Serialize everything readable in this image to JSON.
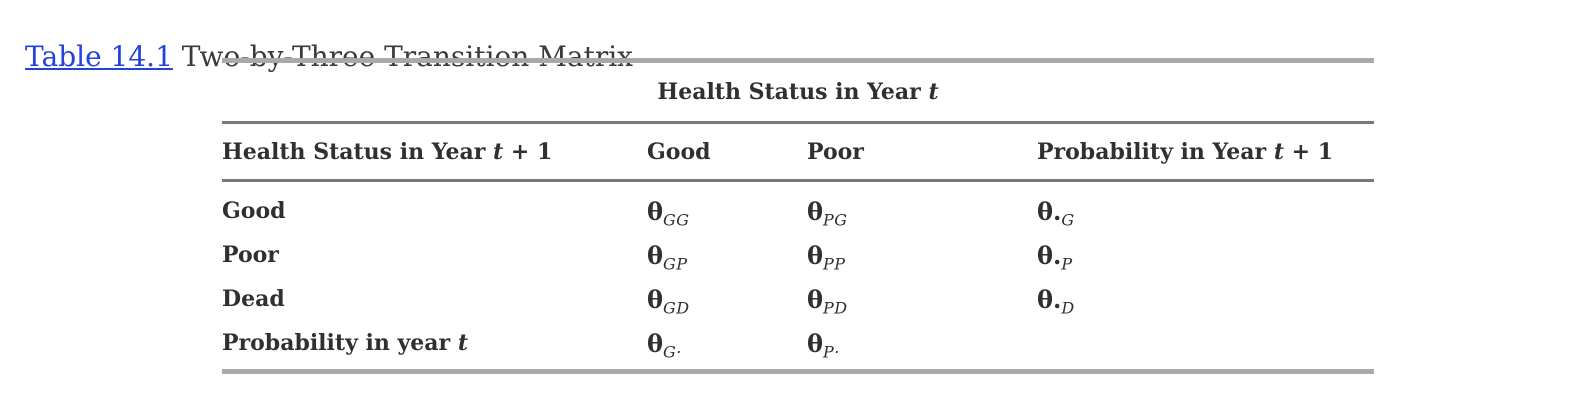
{
  "title": {
    "link_text": "Table 14.1",
    "caption_text": "Two-by-Three Transition Matrix",
    "link_color": "#2442d9",
    "text_color": "#3a3a3a"
  },
  "table": {
    "span_header": [
      "Health Status in Year ",
      {
        "i": "t"
      }
    ],
    "columns": [
      [
        "Health Status in Year ",
        {
          "i": "t"
        },
        " + 1"
      ],
      [
        "Good"
      ],
      [
        "Poor"
      ],
      [
        "Probability in Year ",
        {
          "i": "t"
        },
        " + 1"
      ]
    ],
    "rows": [
      {
        "label": [
          "Good"
        ],
        "cells": [
          [
            {
              "th": "θ"
            },
            {
              "sub": "GG"
            }
          ],
          [
            {
              "th": "θ"
            },
            {
              "sub": "PG"
            }
          ],
          [
            {
              "th": "θ."
            },
            {
              "sub": "G"
            }
          ]
        ]
      },
      {
        "label": [
          "Poor"
        ],
        "cells": [
          [
            {
              "th": "θ"
            },
            {
              "sub": "GP"
            }
          ],
          [
            {
              "th": "θ"
            },
            {
              "sub": "PP"
            }
          ],
          [
            {
              "th": "θ."
            },
            {
              "sub": "P"
            }
          ]
        ]
      },
      {
        "label": [
          "Dead"
        ],
        "cells": [
          [
            {
              "th": "θ"
            },
            {
              "sub": "GD"
            }
          ],
          [
            {
              "th": "θ"
            },
            {
              "sub": "PD"
            }
          ],
          [
            {
              "th": "θ."
            },
            {
              "sub": "D"
            }
          ]
        ]
      },
      {
        "label": [
          "Probability in year ",
          {
            "i": "t"
          }
        ],
        "cells": [
          [
            {
              "th": "θ"
            },
            {
              "sub": "G·"
            }
          ],
          [
            {
              "th": "θ"
            },
            {
              "sub": "P·"
            }
          ],
          []
        ]
      }
    ],
    "colors": {
      "thick_rule": "#a9a9a9",
      "thin_rule": "#787878",
      "text": "#303030"
    }
  }
}
